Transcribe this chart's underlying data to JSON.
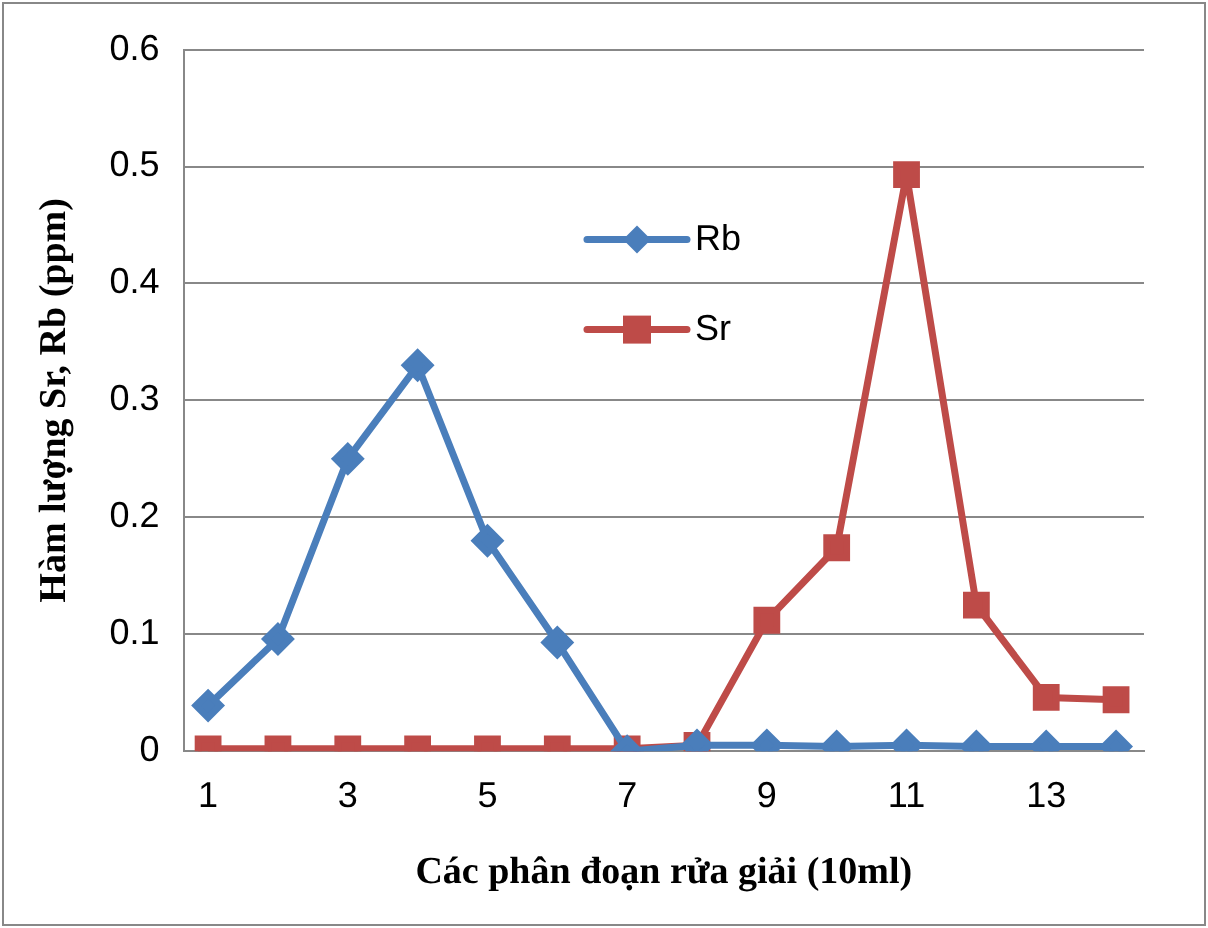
{
  "chart_data": {
    "type": "line",
    "xlabel": "Các phân đoạn rửa giải (10ml)",
    "ylabel": "Hàm lượng Sr, Rb (ppm)",
    "x": [
      1,
      2,
      3,
      4,
      5,
      6,
      7,
      8,
      9,
      10,
      11,
      12,
      13,
      14
    ],
    "xlim": [
      0.65,
      14.4
    ],
    "xticks": [
      1,
      3,
      5,
      7,
      9,
      11,
      13
    ],
    "series": [
      {
        "name": "Rb",
        "color": "#4a7ebb",
        "values": [
          0.039,
          0.096,
          0.25,
          0.33,
          0.18,
          0.093,
          0,
          0.005,
          0.005,
          0.004,
          0.005,
          0.004,
          0.004,
          0.004
        ]
      },
      {
        "name": "Sr",
        "color": "#be4b48",
        "values": [
          0.002,
          0.002,
          0.002,
          0.002,
          0.002,
          0.002,
          0.002,
          0.005,
          0.112,
          0.174,
          0.493,
          0.125,
          0.046,
          0.044
        ],
        "marker": "square"
      }
    ],
    "marker": "diamond",
    "line_style": "solid",
    "ylim": [
      0,
      0.6
    ],
    "yticks": [
      0,
      0.1,
      0.2,
      0.3,
      0.4,
      0.5,
      0.6
    ],
    "grid": "y",
    "legend": "top"
  }
}
